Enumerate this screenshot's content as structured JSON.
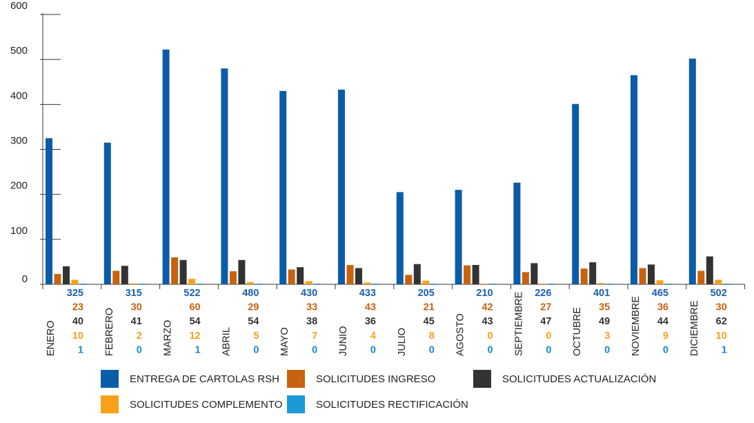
{
  "chart_data": {
    "type": "bar",
    "categories": [
      "ENERO",
      "FEBRERO",
      "MARZO",
      "ABRIL",
      "MAYO",
      "JUNIO",
      "JULIO",
      "AGOSTO",
      "SEPTIEMBRE",
      "OCTUBRE",
      "NOVIEMBRE",
      "DICIEMBRE"
    ],
    "series": [
      {
        "name": "ENTREGA DE CARTOLAS RSH",
        "color": "#0b5ca8",
        "values": [
          325,
          315,
          522,
          480,
          430,
          433,
          205,
          210,
          226,
          401,
          465,
          502
        ]
      },
      {
        "name": "SOLICITUDES INGRESO",
        "color": "#c8620e",
        "values": [
          23,
          30,
          60,
          29,
          33,
          43,
          21,
          42,
          27,
          35,
          36,
          30
        ]
      },
      {
        "name": "SOLICITUDES ACTUALIZACIÓN",
        "color": "#333333",
        "values": [
          40,
          41,
          54,
          54,
          38,
          36,
          45,
          43,
          47,
          49,
          44,
          62
        ]
      },
      {
        "name": "SOLICITUDES COMPLEMENTO",
        "color": "#f7a11a",
        "values": [
          10,
          2,
          12,
          5,
          7,
          4,
          8,
          0,
          0,
          3,
          9,
          10
        ]
      },
      {
        "name": "SOLICITUDES RECTIFICACIÓN",
        "color": "#1a9ad6",
        "values": [
          1,
          0,
          1,
          0,
          0,
          0,
          0,
          0,
          0,
          0,
          0,
          1
        ]
      }
    ],
    "label_colors": [
      "#1a5fb0",
      "#c8620e",
      "#333333",
      "#f7a11a",
      "#1a88c8"
    ],
    "ylim": [
      0,
      600
    ],
    "yticks": [
      0,
      100,
      200,
      300,
      400,
      500,
      600
    ],
    "title": "",
    "xlabel": "",
    "ylabel": "",
    "grid": false,
    "legend_position": "bottom"
  }
}
